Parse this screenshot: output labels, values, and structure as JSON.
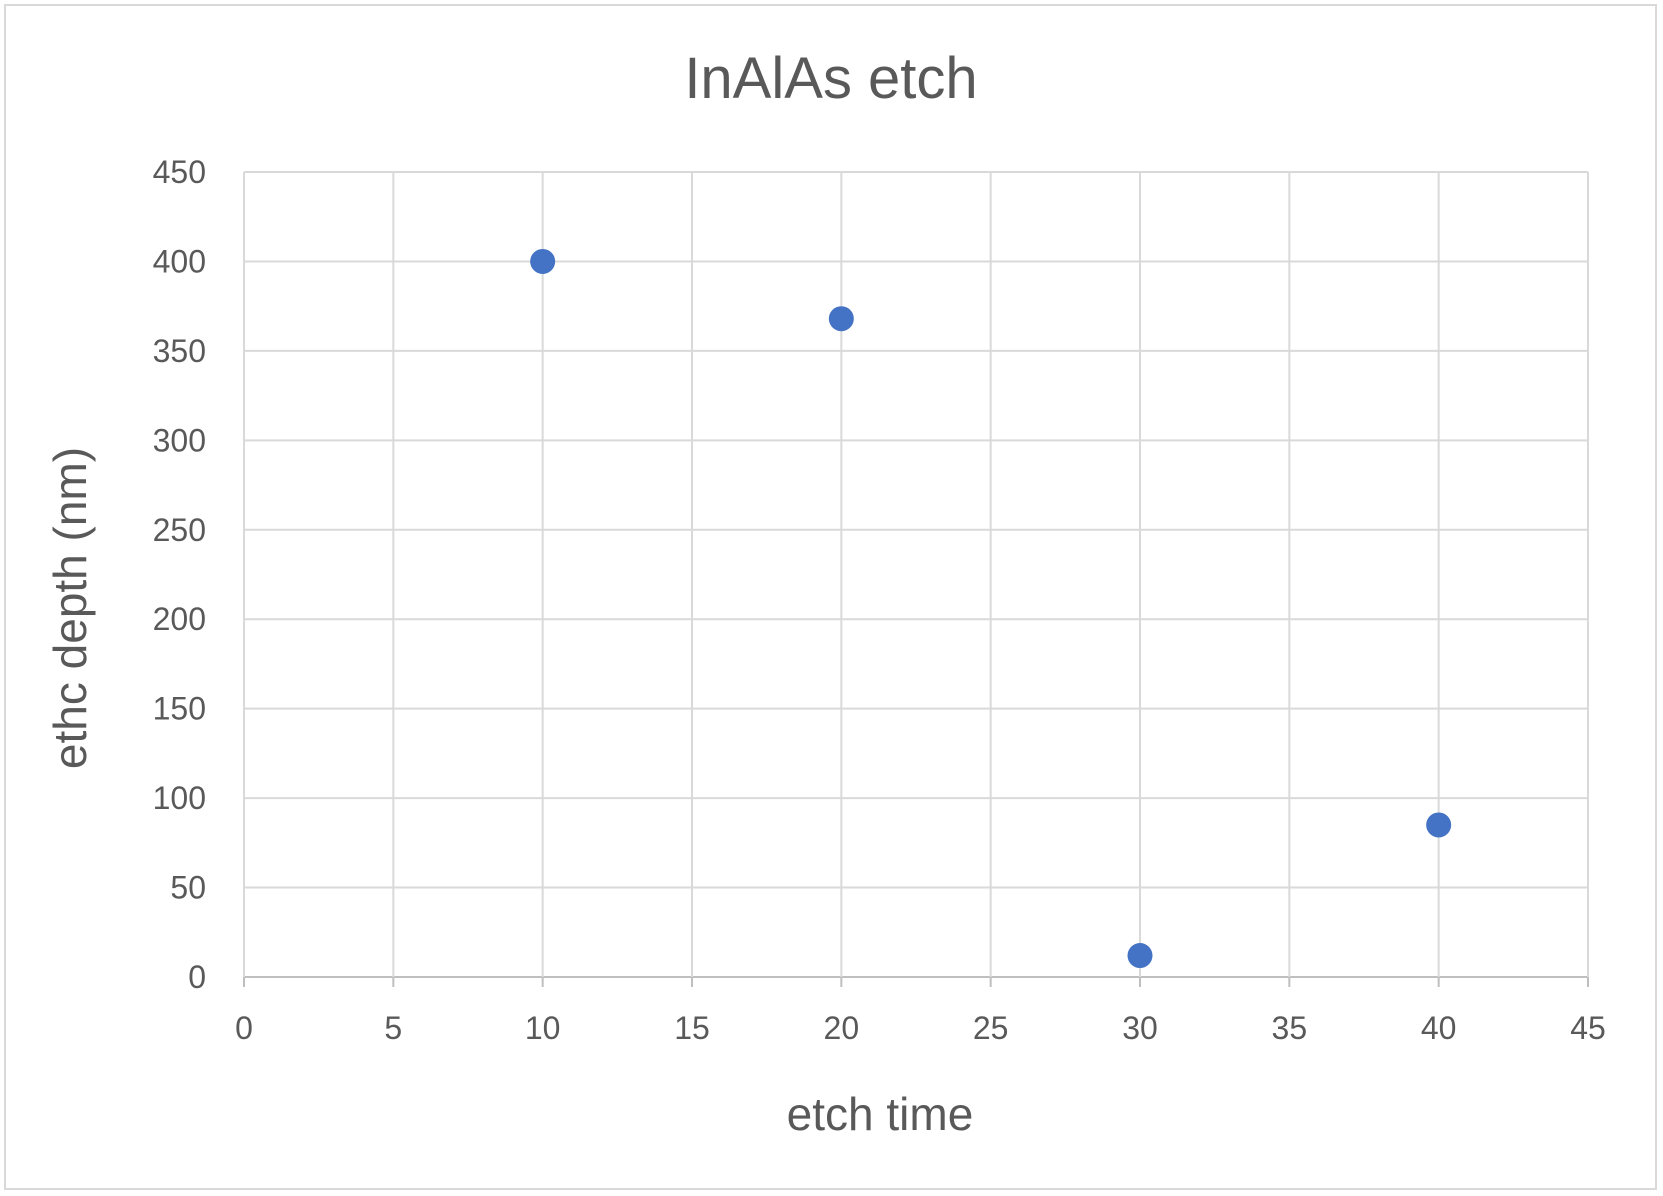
{
  "chart_data": {
    "type": "scatter",
    "title": "InAlAs etch",
    "xlabel": "etch time",
    "ylabel": "ethc depth  (nm)",
    "xlim": [
      0,
      45
    ],
    "ylim": [
      0,
      450
    ],
    "x_ticks": [
      0,
      5,
      10,
      15,
      20,
      25,
      30,
      35,
      40,
      45
    ],
    "y_ticks": [
      0,
      50,
      100,
      150,
      200,
      250,
      300,
      350,
      400,
      450
    ],
    "grid": true,
    "legend": "none",
    "series": [
      {
        "color": "#4472c4",
        "points": [
          {
            "x": 10,
            "y": 400
          },
          {
            "x": 20,
            "y": 368
          },
          {
            "x": 30,
            "y": 12
          },
          {
            "x": 40,
            "y": 85
          }
        ]
      }
    ]
  }
}
